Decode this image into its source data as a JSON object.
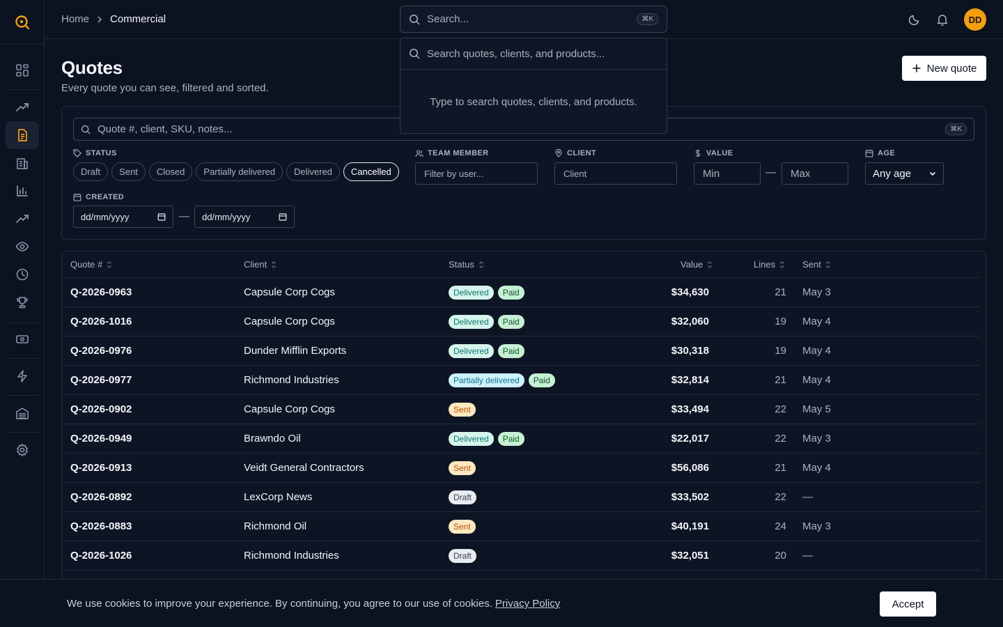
{
  "breadcrumb": {
    "home": "Home",
    "current": "Commercial"
  },
  "top_search": {
    "placeholder": "Search...",
    "shortcut": "⌘K"
  },
  "search_popover": {
    "placeholder": "Search quotes, clients, and products...",
    "empty_text": "Type to search quotes, clients, and products."
  },
  "user": {
    "initials": "DD"
  },
  "header": {
    "title": "Quotes",
    "subtitle": "Every quote you can see, filtered and sorted.",
    "new_button": "New quote"
  },
  "filters": {
    "search_placeholder": "Quote #, client, SKU, notes...",
    "search_shortcut": "⌘K",
    "status_label": "STATUS",
    "status_options": [
      "Draft",
      "Sent",
      "Closed",
      "Partially delivered",
      "Delivered",
      "Cancelled"
    ],
    "status_selected": "Cancelled",
    "team_label": "TEAM MEMBER",
    "team_placeholder": "Filter by user...",
    "client_label": "CLIENT",
    "client_placeholder": "Client",
    "value_label": "VALUE",
    "value_min_placeholder": "Min",
    "value_max_placeholder": "Max",
    "value_separator": "—",
    "age_label": "AGE",
    "age_selected": "Any age",
    "created_label": "CREATED",
    "created_from": "dd/mm/yyyy",
    "created_to": "dd/mm/yyyy",
    "created_separator": "—"
  },
  "table": {
    "headers": {
      "quote": "Quote #",
      "client": "Client",
      "status": "Status",
      "value": "Value",
      "lines": "Lines",
      "sent": "Sent"
    },
    "rows": [
      {
        "quote": "Q-2026-0963",
        "client": "Capsule Corp Cogs",
        "status": "Delivered",
        "payment": "Paid",
        "value": "$34,630",
        "lines": "21",
        "sent": "May 3"
      },
      {
        "quote": "Q-2026-1016",
        "client": "Capsule Corp Cogs",
        "status": "Delivered",
        "payment": "Paid",
        "value": "$32,060",
        "lines": "19",
        "sent": "May 4"
      },
      {
        "quote": "Q-2026-0976",
        "client": "Dunder Mifflin Exports",
        "status": "Delivered",
        "payment": "Paid",
        "value": "$30,318",
        "lines": "19",
        "sent": "May 4"
      },
      {
        "quote": "Q-2026-0977",
        "client": "Richmond Industries",
        "status": "Partially delivered",
        "payment": "Paid",
        "value": "$32,814",
        "lines": "21",
        "sent": "May 4"
      },
      {
        "quote": "Q-2026-0902",
        "client": "Capsule Corp Cogs",
        "status": "Sent",
        "payment": "",
        "value": "$33,494",
        "lines": "22",
        "sent": "May 5"
      },
      {
        "quote": "Q-2026-0949",
        "client": "Brawndo Oil",
        "status": "Delivered",
        "payment": "Paid",
        "value": "$22,017",
        "lines": "22",
        "sent": "May 3"
      },
      {
        "quote": "Q-2026-0913",
        "client": "Veidt General Contractors",
        "status": "Sent",
        "payment": "",
        "value": "$56,086",
        "lines": "21",
        "sent": "May 4"
      },
      {
        "quote": "Q-2026-0892",
        "client": "LexCorp News",
        "status": "Draft",
        "payment": "",
        "value": "$33,502",
        "lines": "22",
        "sent": "—"
      },
      {
        "quote": "Q-2026-0883",
        "client": "Richmond Oil",
        "status": "Sent",
        "payment": "",
        "value": "$40,191",
        "lines": "24",
        "sent": "May 3"
      },
      {
        "quote": "Q-2026-1026",
        "client": "Richmond Industries",
        "status": "Draft",
        "payment": "",
        "value": "$32,051",
        "lines": "20",
        "sent": "—"
      }
    ]
  },
  "cookie": {
    "text": "We use cookies to improve your experience. By continuing, you agree to our use of cookies.",
    "link": "Privacy Policy",
    "accept": "Accept"
  },
  "colors": {
    "accent": "#f59e0b",
    "background": "#0b1220",
    "border": "#232d3f"
  },
  "icons": {
    "sidebar": [
      "dashboard-icon",
      "trending-up-icon",
      "document-icon",
      "building-icon",
      "bar-chart-icon",
      "trend-icon",
      "eye-icon",
      "clock-icon",
      "trophy-icon",
      "banknote-icon",
      "lightning-icon",
      "warehouse-icon",
      "gear-icon"
    ]
  }
}
